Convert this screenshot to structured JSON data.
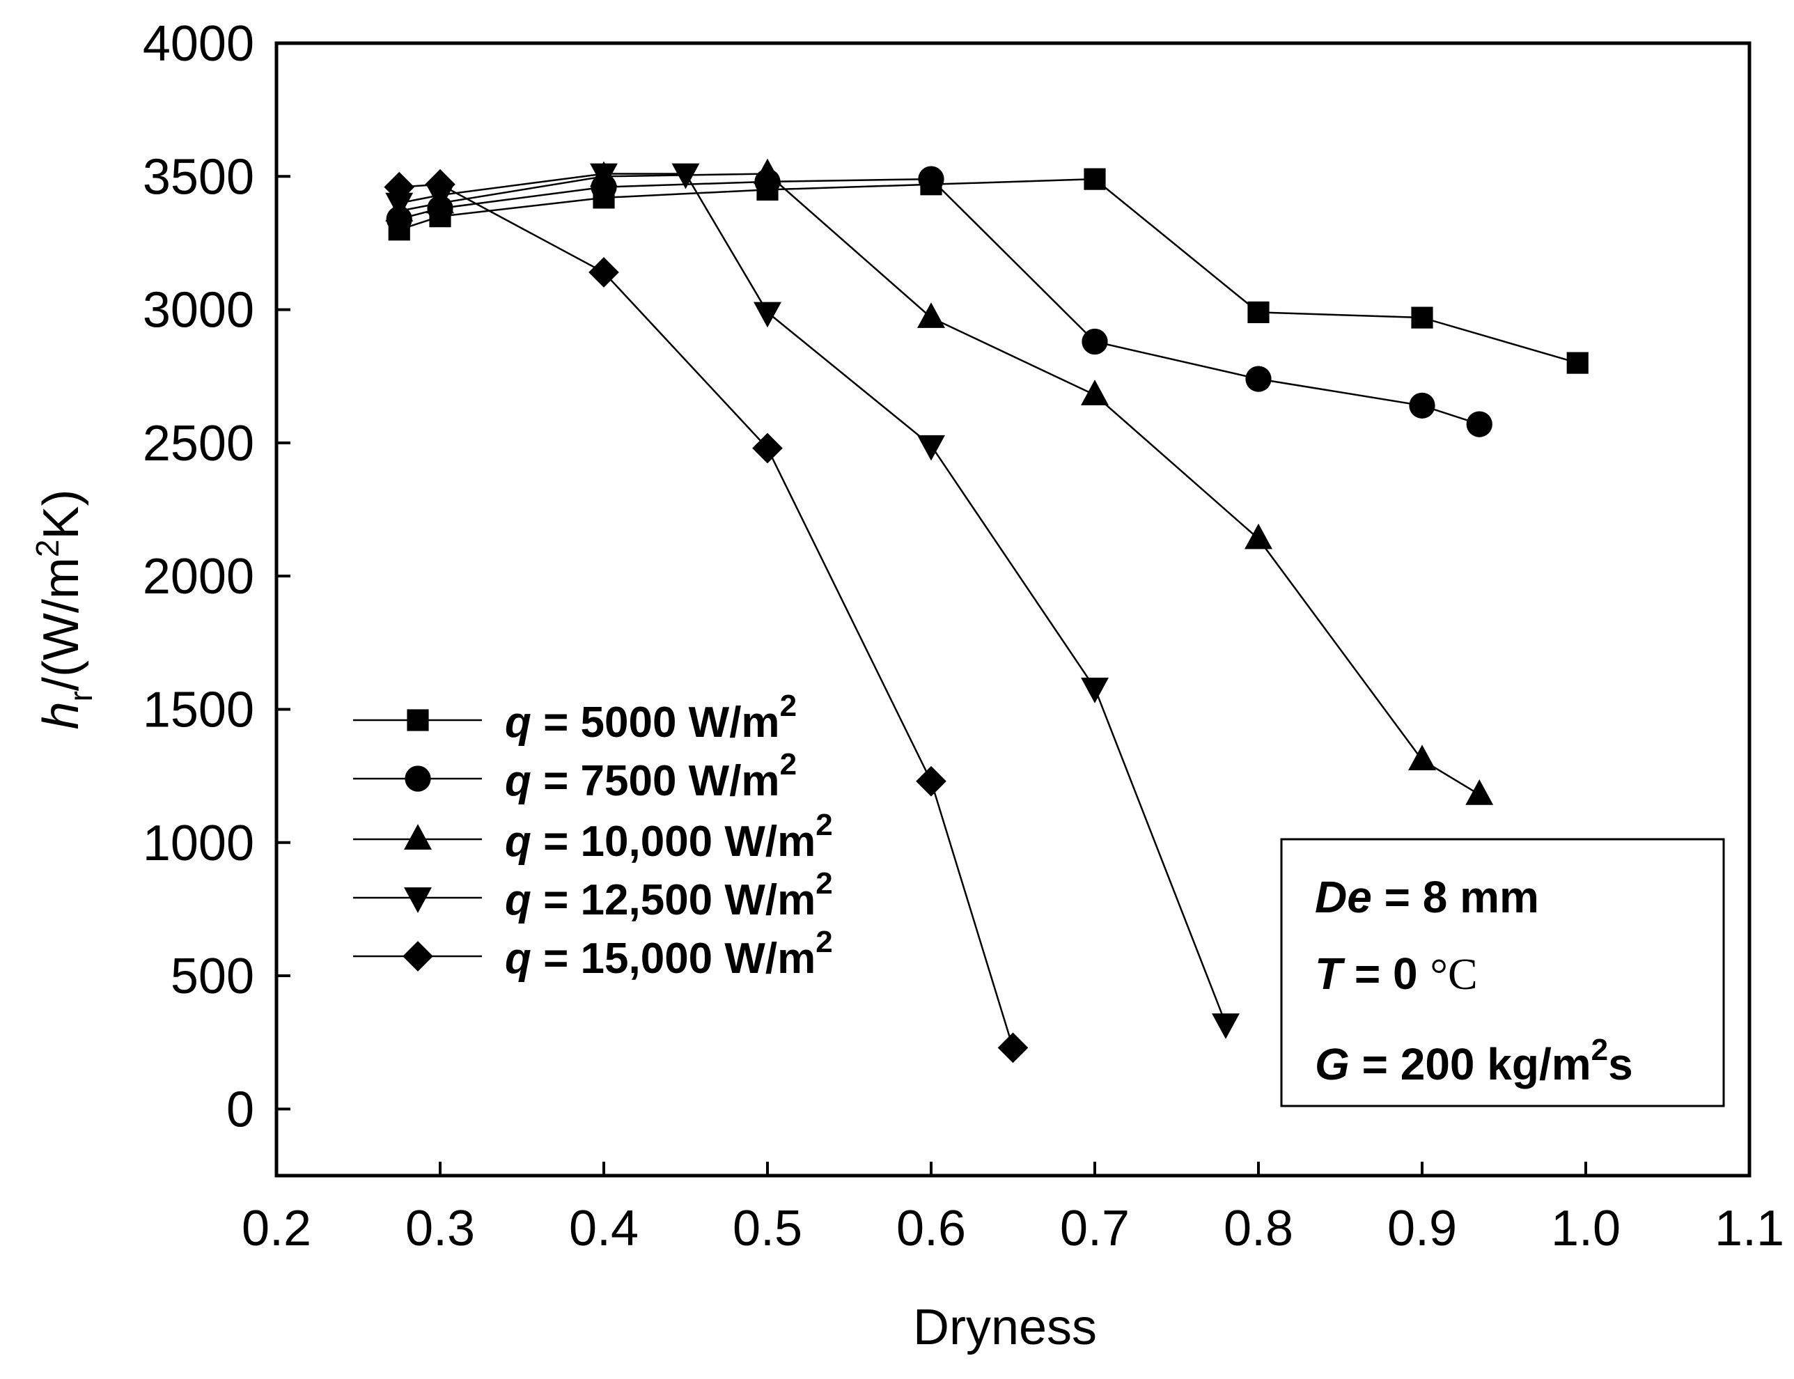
{
  "chart_data": {
    "type": "line",
    "title": "",
    "xlabel": "Dryness",
    "ylabel": {
      "main": "h",
      "sub": "r",
      "unit_before": "/(W/m",
      "unit_sup": "2",
      "unit_after": "K)"
    },
    "xlim": [
      0.2,
      1.1
    ],
    "ylim": [
      -250,
      4000
    ],
    "xticks": [
      0.2,
      0.3,
      0.4,
      0.5,
      0.6,
      0.7,
      0.8,
      0.9,
      1.0,
      1.1
    ],
    "xtick_labels": [
      "0.2",
      "0.3",
      "0.4",
      "0.5",
      "0.6",
      "0.7",
      "0.8",
      "0.9",
      "1.0",
      "1.1"
    ],
    "yticks": [
      0,
      500,
      1000,
      1500,
      2000,
      2500,
      3000,
      3500,
      4000
    ],
    "ytick_labels": [
      "0",
      "500",
      "1000",
      "1500",
      "2000",
      "2500",
      "3000",
      "3500",
      "4000"
    ],
    "grid": false,
    "legend_position": "bottom-left",
    "series": [
      {
        "name": "q = 5000 W/m2",
        "label_q": "q",
        "label_rest": " = 5000 W/m",
        "label_sup": "2",
        "marker": "square",
        "x": [
          0.275,
          0.3,
          0.4,
          0.5,
          0.6,
          0.7,
          0.8,
          0.9,
          0.995
        ],
        "y": [
          3300,
          3350,
          3420,
          3450,
          3470,
          3490,
          2990,
          2970,
          2800
        ]
      },
      {
        "name": "q = 7500 W/m2",
        "label_q": "q",
        "label_rest": " = 7500 W/m",
        "label_sup": "2",
        "marker": "circle",
        "x": [
          0.275,
          0.3,
          0.4,
          0.5,
          0.6,
          0.7,
          0.8,
          0.9,
          0.935
        ],
        "y": [
          3340,
          3380,
          3460,
          3480,
          3490,
          2880,
          2740,
          2640,
          2570
        ]
      },
      {
        "name": "q = 10,000 W/m2",
        "label_q": "q",
        "label_rest": " = 10,000 W/m",
        "label_sup": "2",
        "marker": "triangle-up",
        "x": [
          0.275,
          0.3,
          0.4,
          0.5,
          0.6,
          0.7,
          0.8,
          0.9,
          0.935
        ],
        "y": [
          3370,
          3400,
          3500,
          3510,
          2970,
          2680,
          2140,
          1310,
          1180
        ]
      },
      {
        "name": "q = 12,500 W/m2",
        "label_q": "q",
        "label_rest": " = 12,500 W/m",
        "label_sup": "2",
        "marker": "triangle-down",
        "x": [
          0.275,
          0.3,
          0.4,
          0.45,
          0.5,
          0.6,
          0.7,
          0.78
        ],
        "y": [
          3400,
          3430,
          3510,
          3510,
          2990,
          2490,
          1580,
          320
        ]
      },
      {
        "name": "q = 15,000 W/m2",
        "label_q": "q",
        "label_rest": " = 15,000 W/m",
        "label_sup": "2",
        "marker": "diamond",
        "x": [
          0.275,
          0.3,
          0.4,
          0.5,
          0.6,
          0.65
        ],
        "y": [
          3460,
          3470,
          3140,
          2480,
          1230,
          230
        ]
      }
    ],
    "annotation": {
      "line1_var": "De",
      "line1_rest": " = 8 mm",
      "line2_var": "T",
      "line2_rest": " = 0 ",
      "line2_unit": "°C",
      "line3_var": "G",
      "line3_rest": " = 200 kg/m",
      "line3_sup": "2",
      "line3_after": "s"
    }
  },
  "colors": {
    "ink": "#000000",
    "background": "#ffffff"
  }
}
